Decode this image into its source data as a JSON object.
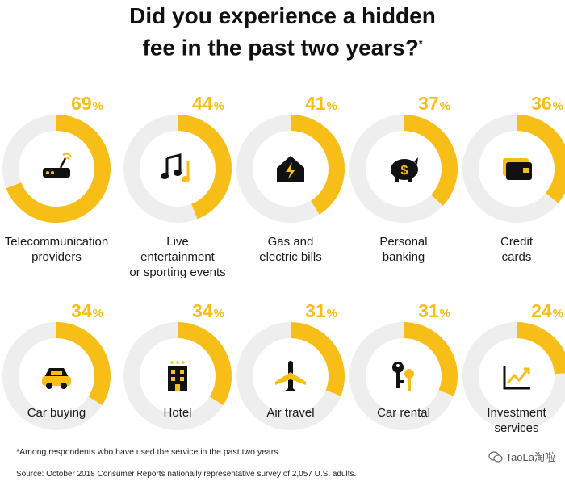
{
  "title": {
    "line1": "Did you experience a hidden",
    "line2": "fee in the past two years?",
    "marker": "*"
  },
  "chart_data": {
    "type": "donut",
    "unit": "%",
    "colors": {
      "filled": "#F7BE17",
      "track": "#EEEEEE"
    },
    "items": [
      {
        "label_lines": [
          "Telecommunication",
          "providers"
        ],
        "value": 69,
        "icon": "router-icon"
      },
      {
        "label_lines": [
          "Live",
          "entertainment",
          "or sporting events"
        ],
        "value": 44,
        "icon": "music-notes-icon"
      },
      {
        "label_lines": [
          "Gas and",
          "electric bills"
        ],
        "value": 41,
        "icon": "house-lightning-icon"
      },
      {
        "label_lines": [
          "Personal",
          "banking"
        ],
        "value": 37,
        "icon": "piggy-bank-icon"
      },
      {
        "label_lines": [
          "Credit",
          "cards"
        ],
        "value": 36,
        "icon": "credit-card-icon"
      },
      {
        "label_lines": [
          "Car buying"
        ],
        "value": 34,
        "icon": "car-icon"
      },
      {
        "label_lines": [
          "Hotel"
        ],
        "value": 34,
        "icon": "hotel-icon"
      },
      {
        "label_lines": [
          "Air travel"
        ],
        "value": 31,
        "icon": "airplane-icon"
      },
      {
        "label_lines": [
          "Car rental"
        ],
        "value": 31,
        "icon": "car-keys-icon"
      },
      {
        "label_lines": [
          "Investment",
          "services"
        ],
        "value": 24,
        "icon": "investment-chart-icon"
      }
    ]
  },
  "footnote": "*Among respondents who have used the service in the past two years.",
  "source": "Source: October 2018 Consumer Reports nationally representative survey of 2,057 U.S. adults.",
  "watermark": "TaoLa淘啦"
}
